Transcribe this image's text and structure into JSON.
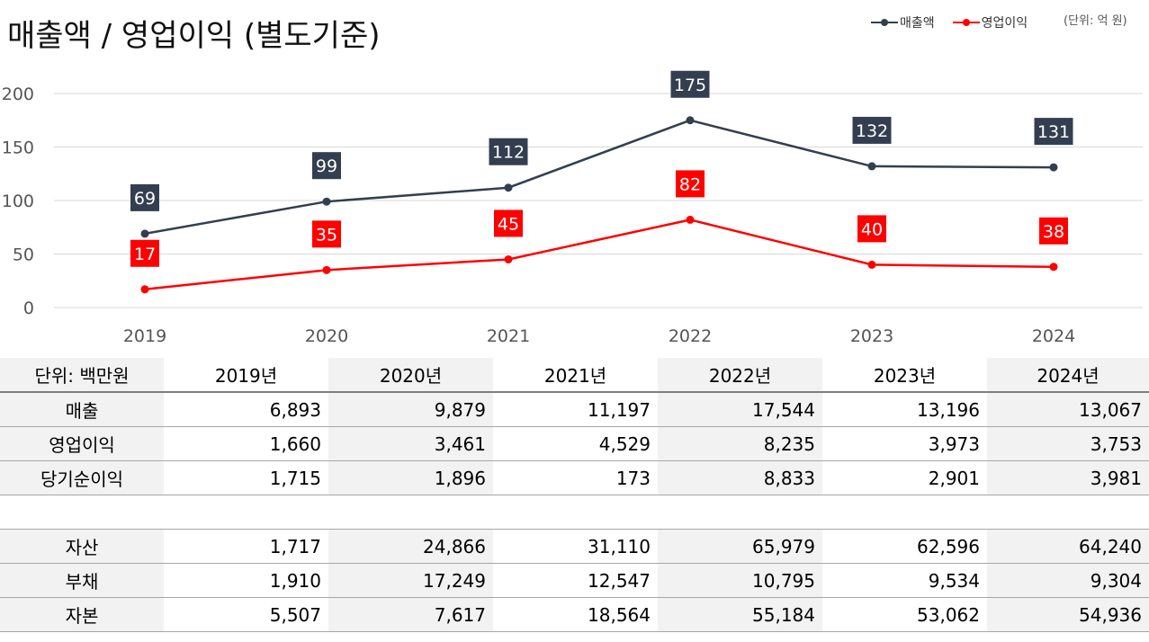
{
  "title": "매출액 / 영업이익 (별도기준)",
  "legend": [
    {
      "label": "매출액",
      "color": "#333f50"
    },
    {
      "label": "영업이익",
      "color": "#ff0000"
    }
  ],
  "unit_note": "(단위: 억 원)",
  "chart_data": {
    "type": "line",
    "title": "매출액 / 영업이익 (별도기준)",
    "categories": [
      "2019",
      "2020",
      "2021",
      "2022",
      "2023",
      "2024"
    ],
    "series": [
      {
        "name": "매출액",
        "color": "#333f50",
        "values": [
          69,
          99,
          112,
          175,
          132,
          131
        ]
      },
      {
        "name": "영업이익",
        "color": "#ff0000",
        "values": [
          17,
          35,
          45,
          82,
          40,
          38
        ]
      }
    ],
    "yticks": [
      "0",
      "50",
      "100",
      "150",
      "200"
    ],
    "ylim": [
      0,
      200
    ],
    "grid": true,
    "legend_position": "top-right"
  },
  "table": {
    "unit_label": "단위: 백만원",
    "years": [
      "2019년",
      "2020년",
      "2021년",
      "2022년",
      "2023년",
      "2024년"
    ],
    "rows": [
      {
        "label": "매출",
        "values": [
          "6,893",
          "9,879",
          "11,197",
          "17,544",
          "13,196",
          "13,067"
        ]
      },
      {
        "label": "영업이익",
        "values": [
          "1,660",
          "3,461",
          "4,529",
          "8,235",
          "3,973",
          "3,753"
        ]
      },
      {
        "label": "당기순이익",
        "values": [
          "1,715",
          "1,896",
          "173",
          "8,833",
          "2,901",
          "3,981"
        ]
      }
    ],
    "rows2": [
      {
        "label": "자산",
        "values": [
          "1,717",
          "24,866",
          "31,110",
          "65,979",
          "62,596",
          "64,240"
        ]
      },
      {
        "label": "부채",
        "values": [
          "1,910",
          "17,249",
          "12,547",
          "10,795",
          "9,534",
          "9,304"
        ]
      },
      {
        "label": "자본",
        "values": [
          "5,507",
          "7,617",
          "18,564",
          "55,184",
          "53,062",
          "54,936"
        ]
      }
    ]
  }
}
